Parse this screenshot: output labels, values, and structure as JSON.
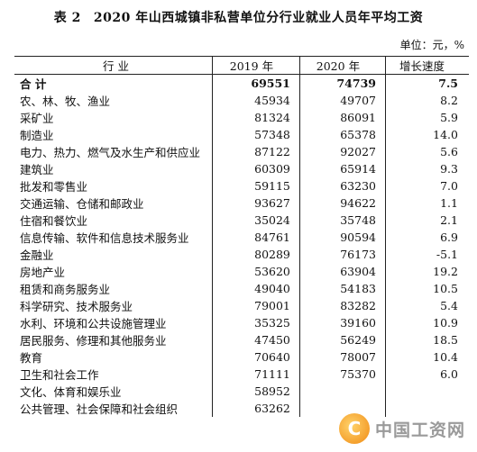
{
  "title": {
    "table_no": "表 2",
    "text": "2020 年山西城镇非私营单位分行业就业人员年平均工资"
  },
  "unit": "单位：元，%",
  "columns": [
    "行  业",
    "2019 年",
    "2020 年",
    "增长速度"
  ],
  "rows": [
    {
      "name": "合  计",
      "y2019": "69551",
      "y2020": "74739",
      "rate": "7.5"
    },
    {
      "name": "农、林、牧、渔业",
      "y2019": "45934",
      "y2020": "49707",
      "rate": "8.2"
    },
    {
      "name": "采矿业",
      "y2019": "81324",
      "y2020": "86091",
      "rate": "5.9"
    },
    {
      "name": "制造业",
      "y2019": "57348",
      "y2020": "65378",
      "rate": "14.0"
    },
    {
      "name": "电力、热力、燃气及水生产和供应业",
      "y2019": "87122",
      "y2020": "92027",
      "rate": "5.6"
    },
    {
      "name": "建筑业",
      "y2019": "60309",
      "y2020": "65914",
      "rate": "9.3"
    },
    {
      "name": "批发和零售业",
      "y2019": "59115",
      "y2020": "63230",
      "rate": "7.0"
    },
    {
      "name": "交通运输、仓储和邮政业",
      "y2019": "93627",
      "y2020": "94622",
      "rate": "1.1"
    },
    {
      "name": "住宿和餐饮业",
      "y2019": "35024",
      "y2020": "35748",
      "rate": "2.1"
    },
    {
      "name": "信息传输、软件和信息技术服务业",
      "y2019": "84761",
      "y2020": "90594",
      "rate": "6.9"
    },
    {
      "name": "金融业",
      "y2019": "80289",
      "y2020": "76173",
      "rate": "-5.1"
    },
    {
      "name": "房地产业",
      "y2019": "53620",
      "y2020": "63904",
      "rate": "19.2"
    },
    {
      "name": "租赁和商务服务业",
      "y2019": "49040",
      "y2020": "54183",
      "rate": "10.5"
    },
    {
      "name": "科学研究、技术服务业",
      "y2019": "79001",
      "y2020": "83282",
      "rate": "5.4"
    },
    {
      "name": "水利、环境和公共设施管理业",
      "y2019": "35325",
      "y2020": "39160",
      "rate": "10.9"
    },
    {
      "name": "居民服务、修理和其他服务业",
      "y2019": "47450",
      "y2020": "56249",
      "rate": "18.5"
    },
    {
      "name": "教育",
      "y2019": "70640",
      "y2020": "78007",
      "rate": "10.4"
    },
    {
      "name": "卫生和社会工作",
      "y2019": "71111",
      "y2020": "75370",
      "rate": "6.0"
    },
    {
      "name": "文化、体育和娱乐业",
      "y2019": "58952",
      "y2020": "",
      "rate": ""
    },
    {
      "name": "公共管理、社会保障和社会组织",
      "y2019": "63262",
      "y2020": "",
      "rate": ""
    }
  ],
  "watermark": {
    "logo_glyph": "C",
    "text": "中国工资网",
    "icon": "coin-logo-icon"
  }
}
